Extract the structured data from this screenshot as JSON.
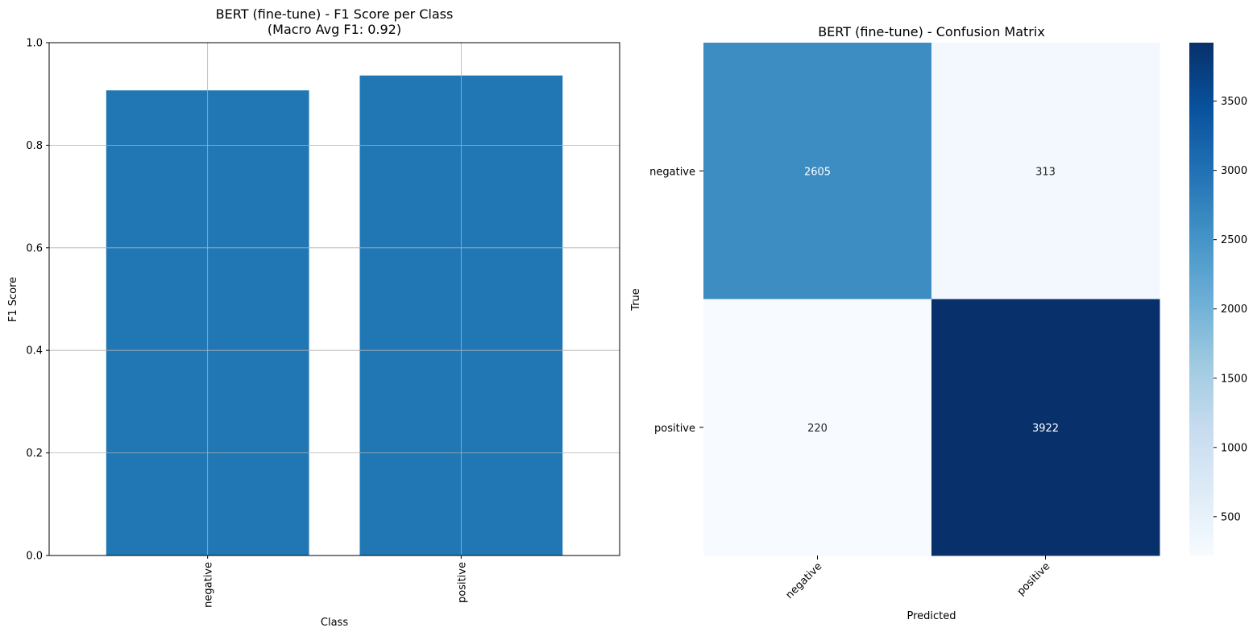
{
  "chart_data": [
    {
      "type": "bar",
      "title": "BERT (fine-tune) - F1 Score per Class\n(Macro Avg F1: 0.92)",
      "xlabel": "Class",
      "ylabel": "F1 Score",
      "categories": [
        "negative",
        "positive"
      ],
      "values": [
        0.907,
        0.936
      ],
      "ylim": [
        0,
        1.0
      ],
      "yticks": [
        "0.0",
        "0.2",
        "0.4",
        "0.6",
        "0.8",
        "1.0"
      ],
      "grid": true,
      "bar_color": "#2077b4"
    },
    {
      "type": "heatmap",
      "title": "BERT (fine-tune) - Confusion Matrix",
      "xlabel": "Predicted",
      "ylabel": "True",
      "row_labels": [
        "negative",
        "positive"
      ],
      "col_labels": [
        "negative",
        "positive"
      ],
      "values": [
        [
          2605,
          313
        ],
        [
          220,
          3922
        ]
      ],
      "colormap": "Blues",
      "colorbar": {
        "range": [
          220,
          3922
        ],
        "ticks": [
          500,
          1000,
          1500,
          2000,
          2500,
          3000,
          3500
        ],
        "tick_labels": [
          "500",
          "1000",
          "1500",
          "2000",
          "2500",
          "3000",
          "3500"
        ]
      }
    }
  ]
}
